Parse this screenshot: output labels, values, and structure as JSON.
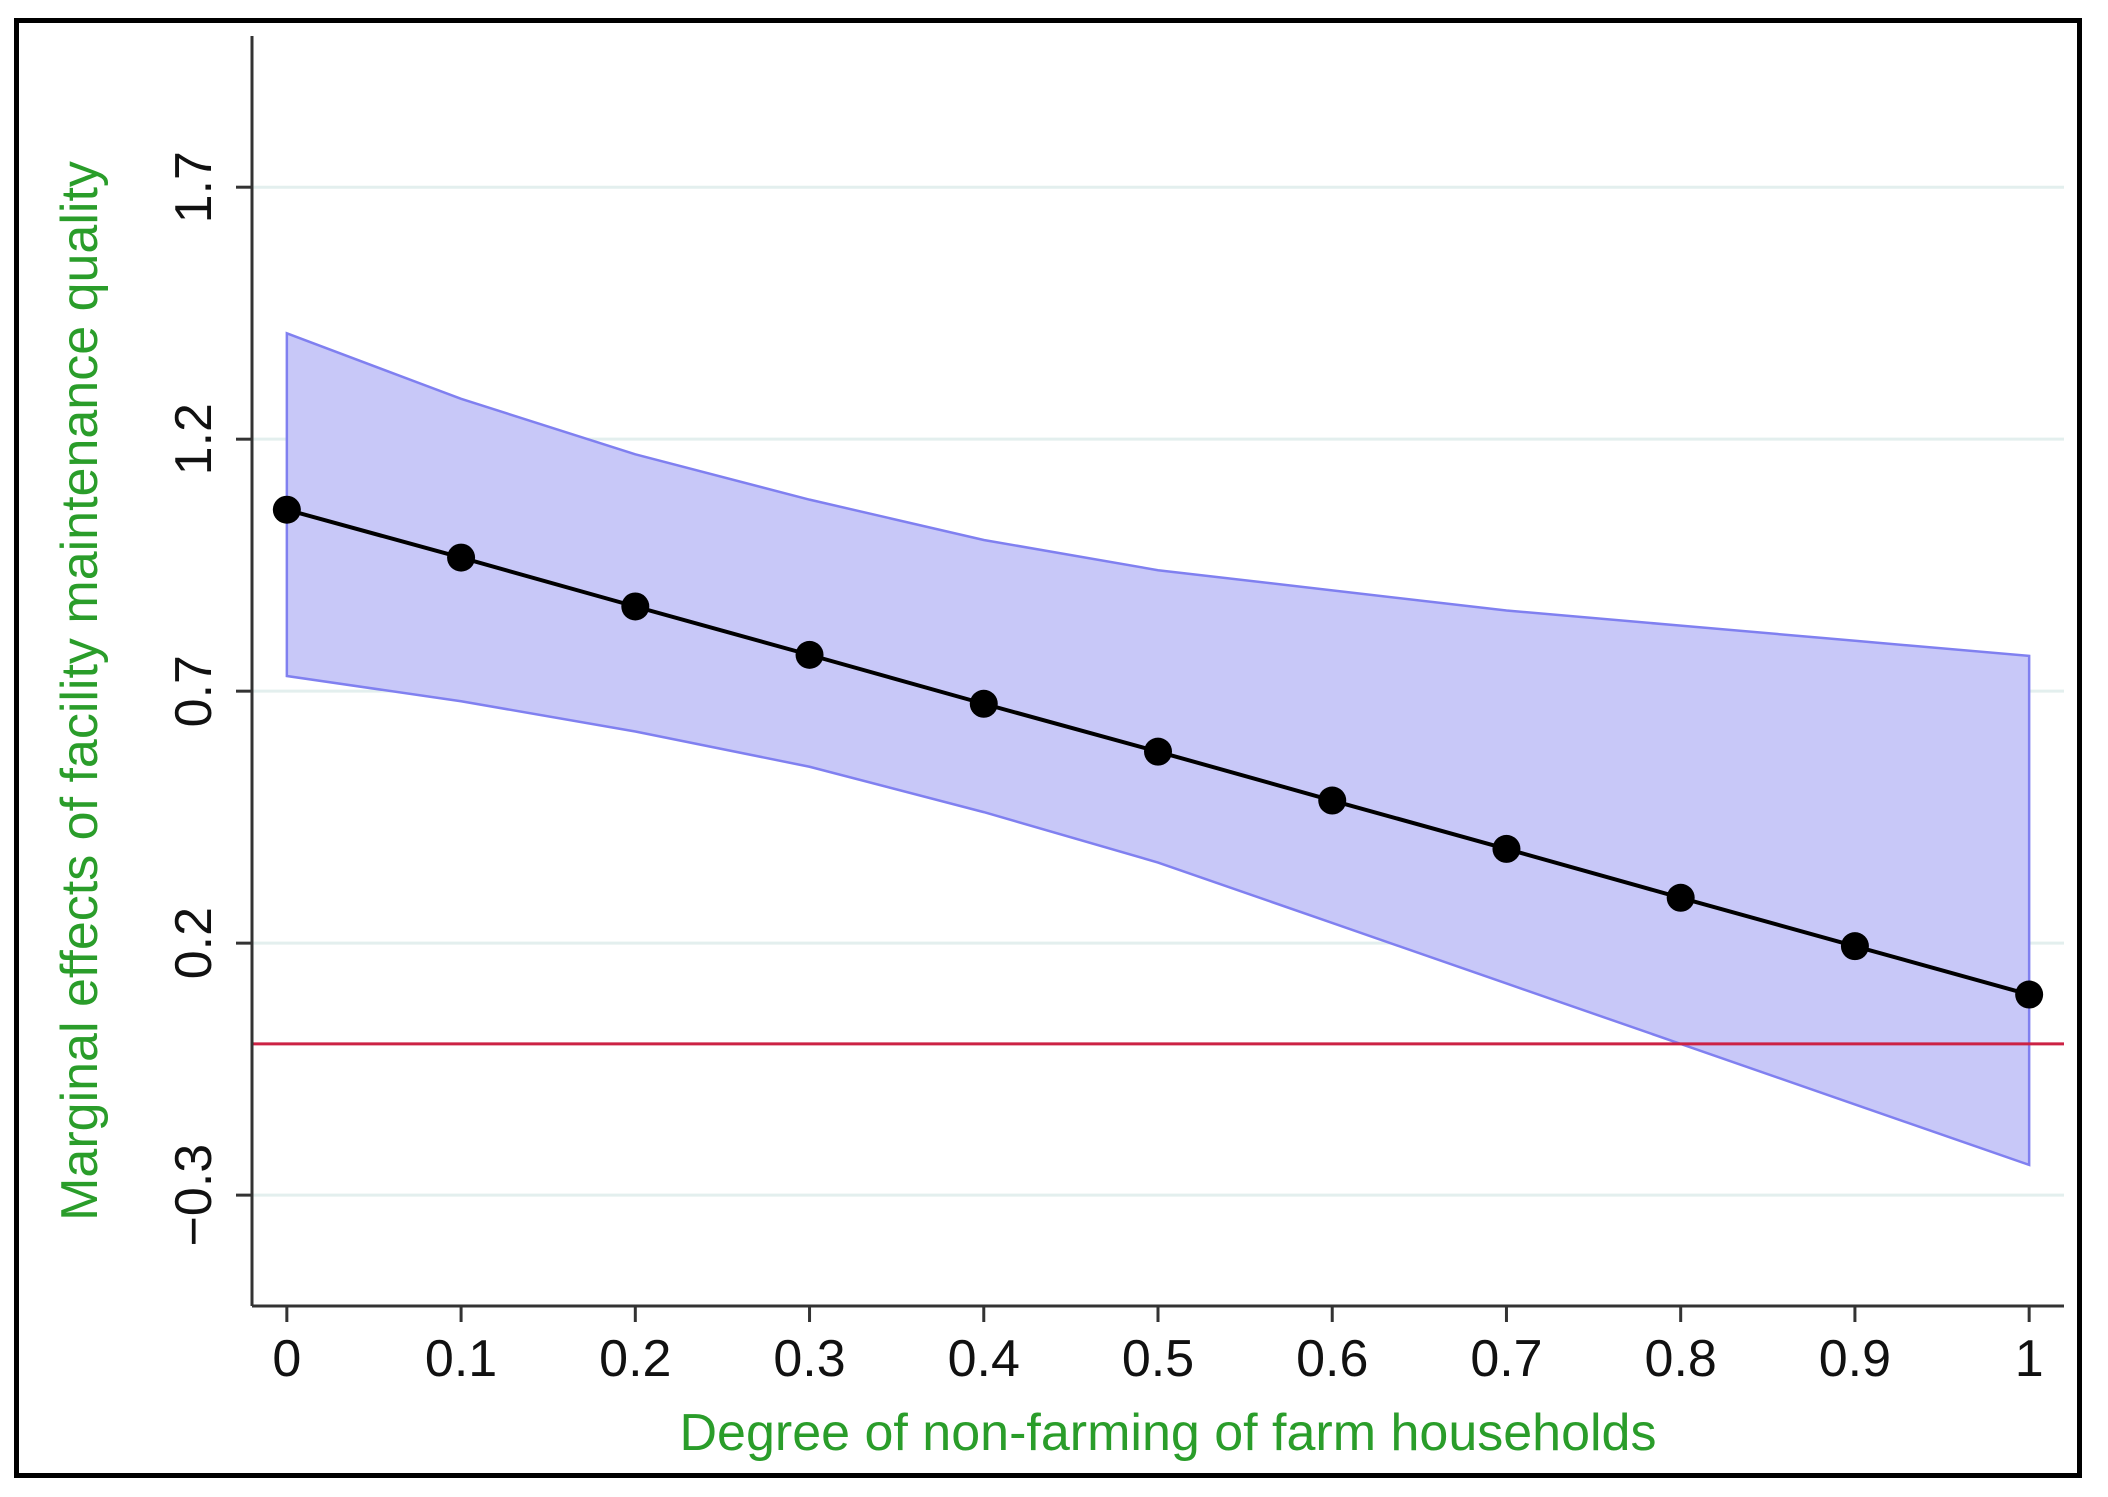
{
  "chart_data": {
    "type": "line",
    "title": "",
    "xlabel": "Degree of non-farming of farm households",
    "ylabel": "Marginal effects of facility maintenance quality",
    "x": [
      0,
      0.1,
      0.2,
      0.3,
      0.4,
      0.5,
      0.6,
      0.7,
      0.8,
      0.9,
      1
    ],
    "series": [
      {
        "values": [
          1.06,
          0.965,
          0.868,
          0.772,
          0.675,
          0.58,
          0.483,
          0.387,
          0.29,
          0.194,
          0.098
        ]
      }
    ],
    "ci_lower": [
      0.73,
      0.68,
      0.62,
      0.55,
      0.46,
      0.36,
      0.24,
      0.12,
      0.0,
      -0.12,
      -0.24
    ],
    "ci_upper": [
      1.41,
      1.28,
      1.17,
      1.08,
      1.0,
      0.94,
      0.9,
      0.86,
      0.83,
      0.8,
      0.77
    ],
    "reference_line_y": 0,
    "xlim": [
      -0.02,
      1.02
    ],
    "ylim": [
      -0.52,
      2.0
    ],
    "xticks": [
      "0",
      "0.1",
      "0.2",
      "0.3",
      "0.4",
      "0.5",
      "0.6",
      "0.7",
      "0.8",
      "0.9",
      "1"
    ],
    "yticks": [
      -0.3,
      0.2,
      0.7,
      1.2,
      1.7
    ],
    "ytick_labels": [
      "−0.3",
      "0.2",
      "0.7",
      "1.2",
      "1.7"
    ],
    "grid": "horizontal",
    "colors": {
      "line": "#000000",
      "band_fill": "#c8c8f8",
      "band_edge": "#8080f0",
      "reference": "#cc2244",
      "grid": "#e3efee",
      "axis_title": "#2a9d2a"
    }
  }
}
